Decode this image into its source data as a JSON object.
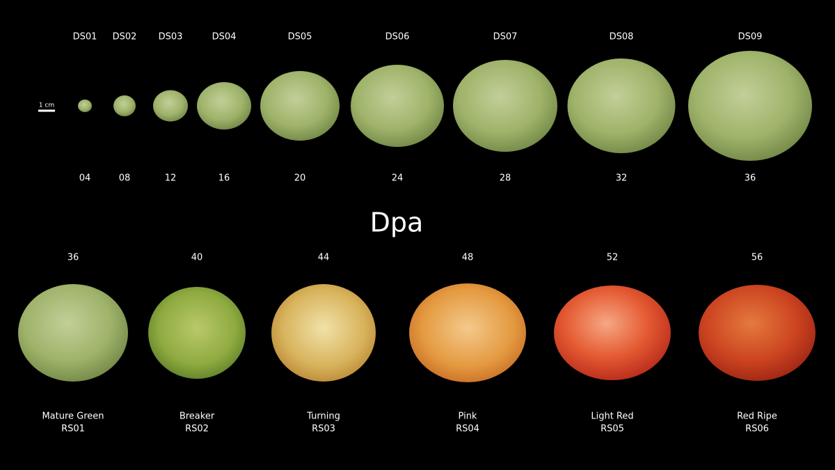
{
  "scale_bar": "1 cm",
  "axis_label": "Dpa",
  "development_stages": [
    {
      "code": "DS01",
      "dpa": "04"
    },
    {
      "code": "DS02",
      "dpa": "08"
    },
    {
      "code": "DS03",
      "dpa": "12"
    },
    {
      "code": "DS04",
      "dpa": "16"
    },
    {
      "code": "DS05",
      "dpa": "20"
    },
    {
      "code": "DS06",
      "dpa": "24"
    },
    {
      "code": "DS07",
      "dpa": "28"
    },
    {
      "code": "DS08",
      "dpa": "32"
    },
    {
      "code": "DS09",
      "dpa": "36"
    }
  ],
  "ripening_stages": [
    {
      "dpa": "36",
      "name": "Mature Green",
      "code": "RS01"
    },
    {
      "dpa": "40",
      "name": "Breaker",
      "code": "RS02"
    },
    {
      "dpa": "44",
      "name": "Turning",
      "code": "RS03"
    },
    {
      "dpa": "48",
      "name": "Pink",
      "code": "RS04"
    },
    {
      "dpa": "52",
      "name": "Light Red",
      "code": "RS05"
    },
    {
      "dpa": "56",
      "name": "Red Ripe",
      "code": "RS06"
    }
  ]
}
